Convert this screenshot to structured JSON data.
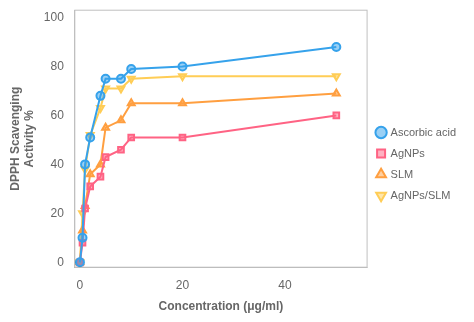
{
  "chart_data": {
    "type": "line",
    "xlabel": "Concentration (μg/ml)",
    "ylabel": "DPPH Scavenging\nActivity %",
    "x": [
      0,
      0.5,
      1,
      2,
      4,
      5,
      8,
      10,
      20,
      50
    ],
    "series": [
      {
        "name": "Ascorbic acid",
        "marker": "circle",
        "values": [
          0,
          10,
          40,
          51,
          68,
          75,
          75,
          79,
          80,
          88
        ]
      },
      {
        "name": "AgNPs",
        "marker": "square",
        "values": [
          0,
          8,
          22,
          31,
          35,
          43,
          46,
          51,
          51,
          60
        ]
      },
      {
        "name": "SLM",
        "marker": "triangle",
        "values": [
          0,
          13,
          23,
          36,
          40,
          55,
          58,
          65,
          65,
          69
        ]
      },
      {
        "name": "AgNPs/SLM",
        "marker": "triangle-down",
        "values": [
          0,
          20,
          38,
          52,
          63,
          71,
          71,
          75,
          76,
          76
        ]
      }
    ],
    "xlim": [
      -1,
      56
    ],
    "ylim": [
      -2,
      103
    ],
    "xticks": [
      0,
      20,
      40
    ],
    "yticks": [
      0,
      20,
      40,
      60,
      80,
      100
    ],
    "grid": false,
    "legend": "right"
  }
}
